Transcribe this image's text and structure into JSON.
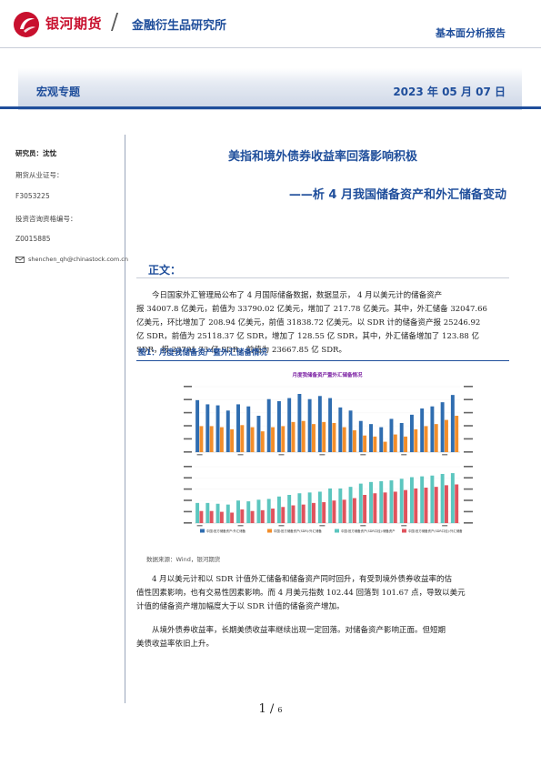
{
  "header": {
    "brand": "银河期货",
    "slash": "/",
    "institute": "金融衍生品研究所",
    "report_type": "基本面分析报告"
  },
  "banner": {
    "topic": "宏观专题",
    "date": "2023 年 05 月 07 日"
  },
  "sidebar": {
    "researcher": "研究员：沈忱",
    "license_label": "期货从业证号：",
    "license_no": "F3053225",
    "advisor_label": "投资咨询资格编号：",
    "advisor_no": "Z0015885",
    "email": "shenchen_qh@chinastock.com.cn"
  },
  "title": {
    "main": "美指和境外债券收益率回落影响积极",
    "sub": "——析 4 月我国储备资产和外汇储备变动"
  },
  "section": {
    "heading": "正文："
  },
  "paragraphs": {
    "p1_l1": "今日国家外汇管理局公布了 4 月国际储备数据，数据显示， 4 月以美元计的储备资产",
    "p1_l2": "报 34007.8 亿美元，前值为 33790.02 亿美元，增加了 217.78 亿美元。其中，外汇储备 32047.66",
    "p1_l3": "亿美元，环比增加了 208.94 亿美元，前值 31838.72 亿美元。以 SDR 计的储备资产报 25246.92",
    "p1_l4": "亿 SDR，前值为 25118.37 亿 SDR，增加了 128.55 亿 SDR，其中，外汇储备增加了 123.88 亿",
    "p1_l5": "SDR，报 23791.73 亿 SDR，前值为 23667.85 亿 SDR。",
    "p2_l1": "4 月以美元计和以 SDR 计值外汇储备和储备资产同时回升，有受到境外债券收益率的估",
    "p2_l2": "值性因素影响，也有交易性因素影响。而 4 月美元指数 102.44 回落到 101.67 点，导致以美元",
    "p2_l3": "计值的储备资产增加幅度大于以 SDR 计值的储备资产增加。",
    "p3_l1": "从境外债券收益率，长期美债收益率继续出现一定回落。对储备资产影响正面。但短期",
    "p3_l2": "美债收益率依旧上升。"
  },
  "figure": {
    "title": "图1：月度我储备资产暨外汇储备情况",
    "source": "数据来源：Wind，银河期货"
  },
  "chart_data": {
    "type": "bar",
    "title": "月度我储备资产暨外汇储备情况",
    "legend": [
      "中国:官方储备资产:外汇储备",
      "中国:官方储备资产(SDR):外汇储备",
      "中国:官方储备资产(SDR口径):储备资产",
      "中国:官方储备资产(SDR口径):外汇储备"
    ],
    "legend_colors": [
      "#2f6db0",
      "#f28e2b",
      "#5cc6bf",
      "#e0535d"
    ],
    "top_panel": {
      "series_a": [
        33500,
        33100,
        33000,
        32500,
        33100,
        32900,
        32000,
        33600,
        33400,
        33700,
        34100,
        33600,
        33900,
        33700,
        32800,
        32500,
        31500,
        31200,
        30900,
        31700,
        31300,
        32100,
        32700,
        32900,
        33300,
        34000
      ],
      "series_b": [
        31000,
        31000,
        30900,
        30700,
        31100,
        30900,
        30500,
        30900,
        31000,
        31400,
        31500,
        31200,
        31400,
        31300,
        30900,
        30600,
        30100,
        30000,
        29500,
        30200,
        30000,
        30700,
        31000,
        31200,
        31600,
        32000
      ]
    },
    "bottom_panel": {
      "series_c": [
        21500,
        21500,
        21400,
        21300,
        21800,
        21700,
        21900,
        22000,
        22300,
        22500,
        22700,
        22800,
        22900,
        23300,
        23300,
        23500,
        23900,
        24100,
        24200,
        24300,
        24500,
        24700,
        24800,
        24900,
        25100,
        25200
      ],
      "series_d": [
        20500,
        20500,
        20400,
        20300,
        20700,
        20500,
        20600,
        20800,
        21000,
        21200,
        21300,
        21500,
        21600,
        21800,
        21900,
        22100,
        22500,
        22700,
        22800,
        22900,
        23100,
        23300,
        23400,
        23500,
        23700,
        23800
      ]
    }
  },
  "page": {
    "current": "1",
    "sep": "/",
    "total": "6"
  }
}
